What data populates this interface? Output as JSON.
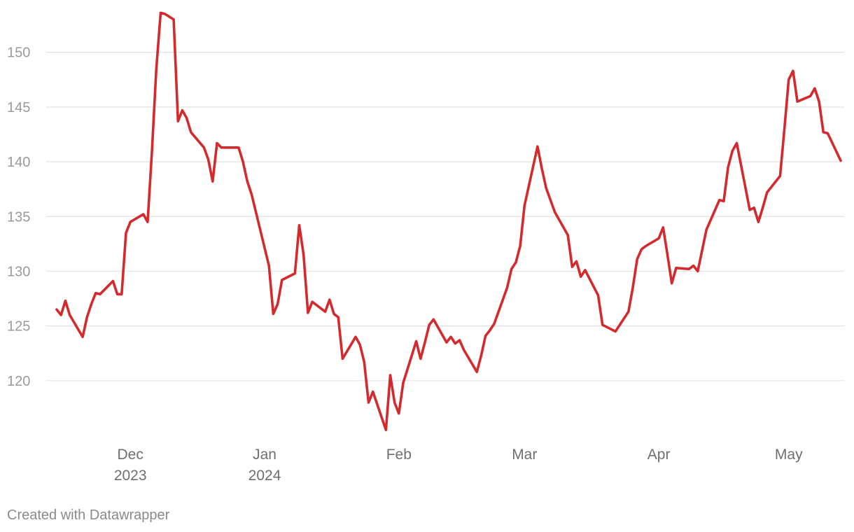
{
  "chart_data": {
    "type": "line",
    "title": "",
    "xlabel": "",
    "ylabel": "",
    "ylim": [
      115,
      153.5
    ],
    "xlim": [
      "2023-11-14",
      "2024-05-13"
    ],
    "grid": true,
    "y_ticks": [
      120,
      125,
      130,
      135,
      140,
      145,
      150
    ],
    "x_ticks": [
      {
        "date": "2023-12-01",
        "line1": "Dec",
        "line2": "2023"
      },
      {
        "date": "2024-01-01",
        "line1": "Jan",
        "line2": "2024"
      },
      {
        "date": "2024-02-01",
        "line1": "Feb",
        "line2": ""
      },
      {
        "date": "2024-03-01",
        "line1": "Mar",
        "line2": ""
      },
      {
        "date": "2024-04-01",
        "line1": "Apr",
        "line2": ""
      },
      {
        "date": "2024-05-01",
        "line1": "May",
        "line2": ""
      }
    ],
    "series": [
      {
        "color": "#d42a2e",
        "x": [
          "2023-11-14",
          "2023-11-15",
          "2023-11-16",
          "2023-11-17",
          "2023-11-20",
          "2023-11-21",
          "2023-11-22",
          "2023-11-23",
          "2023-11-24",
          "2023-11-27",
          "2023-11-28",
          "2023-11-29",
          "2023-11-30",
          "2023-12-01",
          "2023-12-04",
          "2023-12-05",
          "2023-12-06",
          "2023-12-07",
          "2023-12-08",
          "2023-12-09",
          "2023-12-11",
          "2023-12-12",
          "2023-12-13",
          "2023-12-14",
          "2023-12-15",
          "2023-12-18",
          "2023-12-19",
          "2023-12-20",
          "2023-12-21",
          "2023-12-22",
          "2023-12-26",
          "2023-12-27",
          "2023-12-28",
          "2023-12-29",
          "2024-01-02",
          "2024-01-03",
          "2024-01-04",
          "2024-01-05",
          "2024-01-08",
          "2024-01-09",
          "2024-01-10",
          "2024-01-11",
          "2024-01-12",
          "2024-01-15",
          "2024-01-16",
          "2024-01-17",
          "2024-01-18",
          "2024-01-19",
          "2024-01-22",
          "2024-01-23",
          "2024-01-24",
          "2024-01-25",
          "2024-01-26",
          "2024-01-29",
          "2024-01-30",
          "2024-01-31",
          "2024-02-01",
          "2024-02-02",
          "2024-02-05",
          "2024-02-06",
          "2024-02-07",
          "2024-02-08",
          "2024-02-09",
          "2024-02-12",
          "2024-02-13",
          "2024-02-14",
          "2024-02-15",
          "2024-02-16",
          "2024-02-19",
          "2024-02-20",
          "2024-02-21",
          "2024-02-22",
          "2024-02-23",
          "2024-02-26",
          "2024-02-27",
          "2024-02-28",
          "2024-02-29",
          "2024-03-01",
          "2024-03-04",
          "2024-03-05",
          "2024-03-06",
          "2024-03-07",
          "2024-03-08",
          "2024-03-11",
          "2024-03-12",
          "2024-03-13",
          "2024-03-14",
          "2024-03-15",
          "2024-03-18",
          "2024-03-19",
          "2024-03-20",
          "2024-03-21",
          "2024-03-22",
          "2024-03-25",
          "2024-03-26",
          "2024-03-27",
          "2024-03-28",
          "2024-03-29",
          "2024-04-01",
          "2024-04-02",
          "2024-04-03",
          "2024-04-04",
          "2024-04-05",
          "2024-04-08",
          "2024-04-09",
          "2024-04-10",
          "2024-04-11",
          "2024-04-12",
          "2024-04-15",
          "2024-04-16",
          "2024-04-17",
          "2024-04-18",
          "2024-04-19",
          "2024-04-22",
          "2024-04-23",
          "2024-04-24",
          "2024-04-25",
          "2024-04-26",
          "2024-04-29",
          "2024-04-30",
          "2024-05-01",
          "2024-05-02",
          "2024-05-03",
          "2024-05-06",
          "2024-05-07",
          "2024-05-08",
          "2024-05-09",
          "2024-05-10",
          "2024-05-13"
        ],
        "values": [
          126.5,
          126.0,
          127.3,
          126.0,
          124.0,
          125.8,
          127.0,
          128.0,
          127.9,
          129.1,
          127.9,
          127.9,
          133.5,
          134.5,
          135.2,
          134.5,
          141.0,
          148.5,
          153.6,
          153.5,
          153.0,
          143.7,
          144.7,
          144.0,
          142.7,
          141.3,
          140.2,
          138.2,
          141.7,
          141.3,
          141.3,
          140.0,
          138.2,
          137.0,
          130.5,
          126.1,
          127.0,
          129.2,
          129.8,
          134.2,
          131.5,
          126.2,
          127.2,
          126.3,
          127.4,
          126.1,
          125.8,
          122.0,
          124.0,
          123.3,
          121.7,
          118.0,
          119.0,
          115.5,
          120.5,
          118.0,
          117.0,
          119.8,
          123.6,
          122.0,
          123.5,
          125.1,
          125.6,
          123.5,
          124.0,
          123.4,
          123.7,
          122.8,
          120.8,
          122.3,
          124.1,
          124.6,
          125.2,
          128.5,
          130.2,
          130.8,
          132.3,
          136.0,
          141.4,
          139.4,
          137.6,
          136.5,
          135.4,
          133.3,
          130.4,
          130.9,
          129.5,
          130.1,
          127.8,
          125.1,
          124.9,
          124.7,
          124.5,
          126.3,
          128.5,
          131.1,
          132.0,
          132.3,
          133.0,
          134.0,
          131.5,
          128.9,
          130.3,
          130.2,
          130.5,
          130.0,
          131.9,
          133.8,
          136.5,
          136.4,
          139.5,
          141.0,
          141.7,
          135.6,
          135.8,
          134.5,
          135.8,
          137.2,
          138.7,
          143.0,
          147.5,
          148.3,
          145.5,
          146.0,
          146.7,
          145.5,
          142.7,
          142.6,
          140.1
        ]
      }
    ]
  },
  "credit": "Created with Datawrapper"
}
